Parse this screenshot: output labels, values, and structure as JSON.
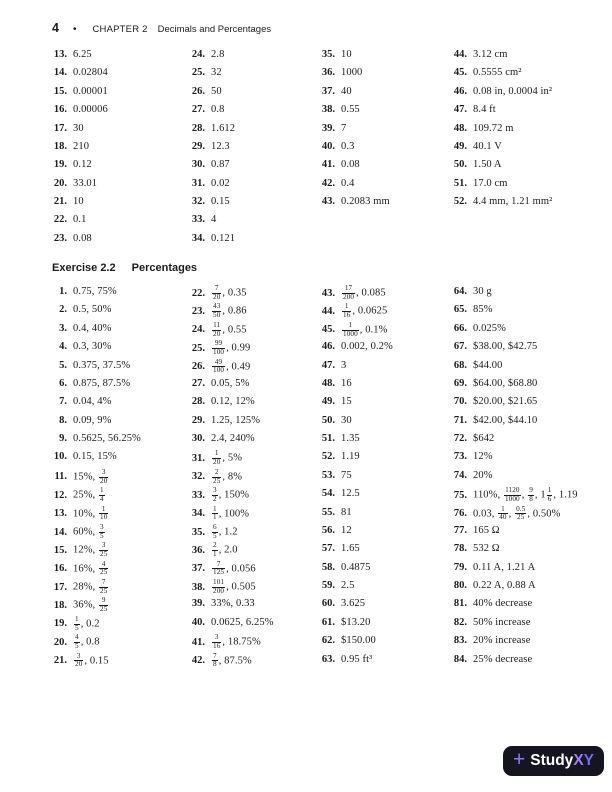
{
  "page": {
    "page_number": "4",
    "separator": "•",
    "chapter_label": "CHAPTER 2",
    "chapter_title": "Decimals and Percentages"
  },
  "colors": {
    "logo_background": "#15151f",
    "logo_plus": "#8b79f6",
    "logo_x": "#9d7bfa",
    "logo_y": "#6f6af5",
    "text": "#1c1c1c"
  },
  "section1": {
    "columns": [
      {
        "items": [
          {
            "n": "13.",
            "v": "6.25"
          },
          {
            "n": "14.",
            "v": "0.02804"
          },
          {
            "n": "15.",
            "v": "0.00001"
          },
          {
            "n": "16.",
            "v": "0.00006"
          },
          {
            "n": "17.",
            "v": "30"
          },
          {
            "n": "18.",
            "v": "210"
          },
          {
            "n": "19.",
            "v": "0.12"
          },
          {
            "n": "20.",
            "v": "33.01"
          },
          {
            "n": "21.",
            "v": "10"
          },
          {
            "n": "22.",
            "v": "0.1"
          },
          {
            "n": "23.",
            "v": "0.08"
          }
        ]
      },
      {
        "items": [
          {
            "n": "24.",
            "v": "2.8"
          },
          {
            "n": "25.",
            "v": "32"
          },
          {
            "n": "26.",
            "v": "50"
          },
          {
            "n": "27.",
            "v": "0.8"
          },
          {
            "n": "28.",
            "v": "1.612"
          },
          {
            "n": "29.",
            "v": "12.3"
          },
          {
            "n": "30.",
            "v": "0.87"
          },
          {
            "n": "31.",
            "v": "0.02"
          },
          {
            "n": "32.",
            "v": "0.15"
          },
          {
            "n": "33.",
            "v": "4"
          },
          {
            "n": "34.",
            "v": "0.121"
          }
        ]
      },
      {
        "items": [
          {
            "n": "35.",
            "v": "10"
          },
          {
            "n": "36.",
            "v": "1000"
          },
          {
            "n": "37.",
            "v": "40"
          },
          {
            "n": "38.",
            "v": "0.55"
          },
          {
            "n": "39.",
            "v": "7"
          },
          {
            "n": "40.",
            "v": "0.3"
          },
          {
            "n": "41.",
            "v": "0.08"
          },
          {
            "n": "42.",
            "v": "0.4"
          },
          {
            "n": "43.",
            "v": "0.2083 mm"
          }
        ]
      },
      {
        "items": [
          {
            "n": "44.",
            "v": "3.12 cm"
          },
          {
            "n": "45.",
            "v": "0.5555 cm²"
          },
          {
            "n": "46.",
            "v": "0.08 in, 0.0004 in²"
          },
          {
            "n": "47.",
            "v": "8.4 ft"
          },
          {
            "n": "48.",
            "v": "109.72 m"
          },
          {
            "n": "49.",
            "v": "40.1 V"
          },
          {
            "n": "50.",
            "v": "1.50 A"
          },
          {
            "n": "51.",
            "v": "17.0 cm"
          },
          {
            "n": "52.",
            "v": "4.4 mm, 1.21 mm²"
          }
        ]
      }
    ]
  },
  "section2": {
    "heading_number": "Exercise 2.2",
    "heading_title": "Percentages",
    "columns": [
      {
        "items": [
          {
            "n": "1.",
            "v": "0.75, 75%"
          },
          {
            "n": "2.",
            "v": "0.5, 50%"
          },
          {
            "n": "3.",
            "v": "0.4, 40%"
          },
          {
            "n": "4.",
            "v": "0.3, 30%"
          },
          {
            "n": "5.",
            "v": "0.375, 37.5%"
          },
          {
            "n": "6.",
            "v": "0.875, 87.5%"
          },
          {
            "n": "7.",
            "v": "0.04, 4%"
          },
          {
            "n": "8.",
            "v": "0.09, 9%"
          },
          {
            "n": "9.",
            "v": "0.5625, 56.25%"
          },
          {
            "n": "10.",
            "v": "0.15, 15%"
          },
          {
            "n": "11.",
            "v": "15%, [3/20]"
          },
          {
            "n": "12.",
            "v": "25%, [1/4]"
          },
          {
            "n": "13.",
            "v": "10%, [1/10]"
          },
          {
            "n": "14.",
            "v": "60%, [3/5]"
          },
          {
            "n": "15.",
            "v": "12%, [3/25]"
          },
          {
            "n": "16.",
            "v": "16%, [4/25]"
          },
          {
            "n": "17.",
            "v": "28%, [7/25]"
          },
          {
            "n": "18.",
            "v": "36%, [9/25]"
          },
          {
            "n": "19.",
            "v": "[1/5], 0.2"
          },
          {
            "n": "20.",
            "v": "[4/5], 0.8"
          },
          {
            "n": "21.",
            "v": "[3/20], 0.15"
          }
        ]
      },
      {
        "items": [
          {
            "n": "22.",
            "v": "[7/20], 0.35"
          },
          {
            "n": "23.",
            "v": "[43/50], 0.86"
          },
          {
            "n": "24.",
            "v": "[11/20], 0.55"
          },
          {
            "n": "25.",
            "v": "[99/100], 0.99"
          },
          {
            "n": "26.",
            "v": "[49/100], 0.49"
          },
          {
            "n": "27.",
            "v": "0.05, 5%"
          },
          {
            "n": "28.",
            "v": "0.12, 12%"
          },
          {
            "n": "29.",
            "v": "1.25, 125%"
          },
          {
            "n": "30.",
            "v": "2.4, 240%"
          },
          {
            "n": "31.",
            "v": "[1/20], 5%"
          },
          {
            "n": "32.",
            "v": "[2/25], 8%"
          },
          {
            "n": "33.",
            "v": "[3/2], 150%"
          },
          {
            "n": "34.",
            "v": "[1/1], 100%"
          },
          {
            "n": "35.",
            "v": "[6/5], 1.2"
          },
          {
            "n": "36.",
            "v": "[2/1], 2.0"
          },
          {
            "n": "37.",
            "v": "[7/125], 0.056"
          },
          {
            "n": "38.",
            "v": "[101/200], 0.505"
          },
          {
            "n": "39.",
            "v": "33%, 0.33"
          },
          {
            "n": "40.",
            "v": "0.0625, 6.25%"
          },
          {
            "n": "41.",
            "v": "[3/16], 18.75%"
          },
          {
            "n": "42.",
            "v": "[7/8], 87.5%"
          }
        ]
      },
      {
        "items": [
          {
            "n": "43.",
            "v": "[17/200], 0.085"
          },
          {
            "n": "44.",
            "v": "[1/16], 0.0625"
          },
          {
            "n": "45.",
            "v": "[1/1000], 0.1%"
          },
          {
            "n": "46.",
            "v": "0.002, 0.2%"
          },
          {
            "n": "47.",
            "v": "3"
          },
          {
            "n": "48.",
            "v": "16"
          },
          {
            "n": "49.",
            "v": "15"
          },
          {
            "n": "50.",
            "v": "30"
          },
          {
            "n": "51.",
            "v": "1.35"
          },
          {
            "n": "52.",
            "v": "1.19"
          },
          {
            "n": "53.",
            "v": "75"
          },
          {
            "n": "54.",
            "v": "12.5"
          },
          {
            "n": "55.",
            "v": "81"
          },
          {
            "n": "56.",
            "v": "12"
          },
          {
            "n": "57.",
            "v": "1.65"
          },
          {
            "n": "58.",
            "v": "0.4875"
          },
          {
            "n": "59.",
            "v": "2.5"
          },
          {
            "n": "60.",
            "v": "3.625"
          },
          {
            "n": "61.",
            "v": "$13.20"
          },
          {
            "n": "62.",
            "v": "$150.00"
          },
          {
            "n": "63.",
            "v": "0.95 ft³"
          }
        ]
      },
      {
        "items": [
          {
            "n": "64.",
            "v": "30 g"
          },
          {
            "n": "65.",
            "v": "85%"
          },
          {
            "n": "66.",
            "v": "0.025%"
          },
          {
            "n": "67.",
            "v": "$38.00, $42.75"
          },
          {
            "n": "68.",
            "v": "$44.00"
          },
          {
            "n": "69.",
            "v": "$64.00, $68.80"
          },
          {
            "n": "70.",
            "v": "$20.00, $21.65"
          },
          {
            "n": "71.",
            "v": "$42.00, $44.10"
          },
          {
            "n": "72.",
            "v": "$642"
          },
          {
            "n": "73.",
            "v": "12%"
          },
          {
            "n": "74.",
            "v": "20%"
          },
          {
            "n": "75.",
            "v": "110%, [1120/1000], [9/8], 1[1/6], 1.19"
          },
          {
            "n": "76.",
            "v": "0.03, [1/40], [0.5/25], 0.50%"
          },
          {
            "n": "77.",
            "v": "165 Ω"
          },
          {
            "n": "78.",
            "v": "532 Ω"
          },
          {
            "n": "79.",
            "v": "0.11 A, 1.21 A"
          },
          {
            "n": "80.",
            "v": "0.22 A, 0.88 A"
          },
          {
            "n": "81.",
            "v": "40% decrease"
          },
          {
            "n": "82.",
            "v": "50% increase"
          },
          {
            "n": "83.",
            "v": "20% increase"
          },
          {
            "n": "84.",
            "v": "25% decrease"
          }
        ]
      }
    ]
  },
  "logo": {
    "plus_icon": "+",
    "brand_study": "Study",
    "brand_x": "X",
    "brand_y": "Y"
  }
}
